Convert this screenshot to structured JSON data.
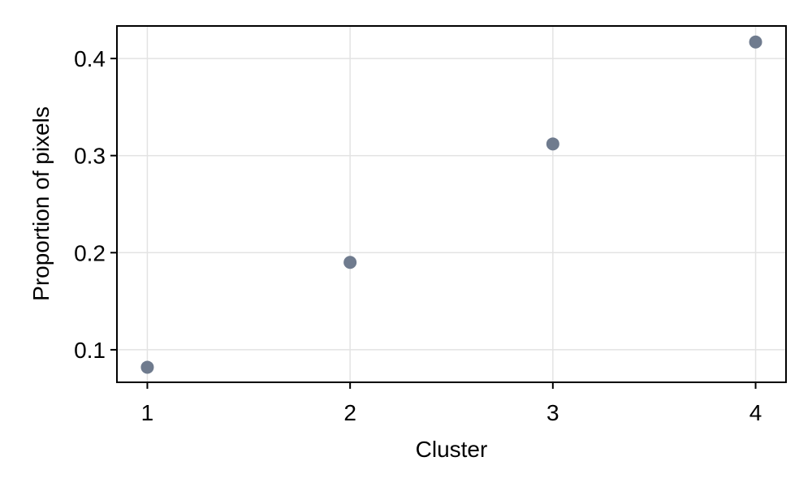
{
  "chart_data": {
    "type": "scatter",
    "title": "",
    "xlabel": "Cluster",
    "ylabel": "Proportion of pixels",
    "x": [
      1,
      2,
      3,
      4
    ],
    "y": [
      0.082,
      0.19,
      0.312,
      0.417
    ],
    "x_ticks": [
      1,
      2,
      3,
      4
    ],
    "x_tick_labels": [
      "1",
      "2",
      "3",
      "4"
    ],
    "y_ticks": [
      0.1,
      0.2,
      0.3,
      0.4
    ],
    "y_tick_labels": [
      "0.1",
      "0.2",
      "0.3",
      "0.4"
    ],
    "xlim": [
      0.85,
      4.15
    ],
    "ylim": [
      0.0665,
      0.4335
    ],
    "grid": true,
    "colors": {
      "marker": "#6f7b8e",
      "grid": "#e3e3e3",
      "frame": "#000000",
      "text": "#000000"
    }
  }
}
